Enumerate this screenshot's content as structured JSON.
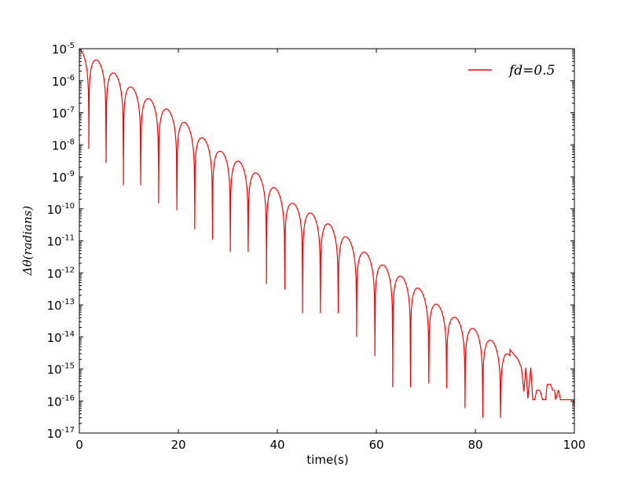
{
  "chart_data": {
    "type": "line",
    "title": "",
    "xlabel": "time(s)",
    "ylabel": "Δθ(radians)",
    "xlim": [
      0,
      100
    ],
    "ylim": [
      1e-17,
      1e-05
    ],
    "yscale": "log",
    "grid": false,
    "legend_position": "top-right",
    "x_ticks": [
      0,
      20,
      40,
      60,
      80,
      100
    ],
    "y_tick_exponents": [
      -5,
      -6,
      -7,
      -8,
      -9,
      -10,
      -11,
      -12,
      -13,
      -14,
      -15,
      -16,
      -17
    ],
    "y_tick_base": "10",
    "series": [
      {
        "name": "fd=0.5",
        "color": "#ff0000",
        "envelope_peaks": [
          {
            "t": 0.0,
            "y": 1e-05
          },
          {
            "t": 3.5,
            "y": 4.5e-06
          },
          {
            "t": 6.8,
            "y": 1.85e-06
          },
          {
            "t": 10.4,
            "y": 6.5e-07
          },
          {
            "t": 14.0,
            "y": 2.8e-07
          },
          {
            "t": 17.6,
            "y": 1.35e-07
          },
          {
            "t": 21.2,
            "y": 5.2e-08
          },
          {
            "t": 24.8,
            "y": 1.7e-08
          },
          {
            "t": 28.4,
            "y": 6.5e-09
          },
          {
            "t": 32.0,
            "y": 3.2e-09
          },
          {
            "t": 35.6,
            "y": 1.4e-09
          },
          {
            "t": 39.2,
            "y": 5e-10
          },
          {
            "t": 42.8,
            "y": 1.6e-10
          },
          {
            "t": 46.4,
            "y": 8e-11
          },
          {
            "t": 50.0,
            "y": 3.7e-11
          },
          {
            "t": 53.6,
            "y": 1.5e-11
          },
          {
            "t": 57.2,
            "y": 5e-12
          },
          {
            "t": 60.8,
            "y": 2e-12
          },
          {
            "t": 64.4,
            "y": 9e-13
          },
          {
            "t": 68.0,
            "y": 4e-13
          },
          {
            "t": 71.6,
            "y": 1.25e-13
          },
          {
            "t": 75.2,
            "y": 4.8e-14
          },
          {
            "t": 78.8,
            "y": 2.2e-14
          },
          {
            "t": 82.4,
            "y": 9.5e-15
          },
          {
            "t": 86.0,
            "y": 4e-15
          },
          {
            "t": 89.2,
            "y": 1e-15
          }
        ],
        "zero_crossings": [
          {
            "t": 1.9,
            "y": 5.5e-08
          },
          {
            "t": 5.4,
            "y": 7.5e-09
          },
          {
            "t": 8.9,
            "y": 2.7e-09
          },
          {
            "t": 12.4,
            "y": 5.5e-10
          },
          {
            "t": 16.0,
            "y": 1e-09
          },
          {
            "t": 19.7,
            "y": 1.5e-10
          },
          {
            "t": 23.3,
            "y": 9e-11
          },
          {
            "t": 26.9,
            "y": 2.3e-11
          },
          {
            "t": 30.5,
            "y": 1.1e-11
          },
          {
            "t": 34.1,
            "y": 4.5e-12
          },
          {
            "t": 37.8,
            "y": 4.5e-12
          },
          {
            "t": 41.5,
            "y": 4.5e-13
          },
          {
            "t": 45.1,
            "y": 3e-13
          },
          {
            "t": 48.7,
            "y": 5.5e-14
          },
          {
            "t": 52.3,
            "y": 9e-14
          },
          {
            "t": 56.0,
            "y": 5.5e-14
          },
          {
            "t": 59.7,
            "y": 1e-14
          },
          {
            "t": 63.3,
            "y": 2.5e-15
          },
          {
            "t": 66.9,
            "y": 2.7e-16
          },
          {
            "t": 70.6,
            "y": 3.5e-16
          },
          {
            "t": 74.2,
            "y": 3.5e-16
          },
          {
            "t": 77.9,
            "y": 2.5e-16
          },
          {
            "t": 81.5,
            "y": 6e-17
          },
          {
            "t": 85.1,
            "y": 3e-17
          }
        ],
        "tail": [
          {
            "t": 87.0,
            "y": 4e-15
          },
          {
            "t": 88.6,
            "y": 2e-15
          },
          {
            "t": 89.3,
            "y": 1.1e-15
          },
          {
            "t": 89.8,
            "y": 2e-16
          },
          {
            "t": 90.2,
            "y": 1.1e-15
          },
          {
            "t": 90.6,
            "y": 1.2e-16
          },
          {
            "t": 91.2,
            "y": 1.1e-15
          },
          {
            "t": 91.6,
            "y": 1.1e-16
          },
          {
            "t": 92.0,
            "y": 1.1e-16
          },
          {
            "t": 92.4,
            "y": 2.2e-16
          },
          {
            "t": 93.0,
            "y": 2.2e-16
          },
          {
            "t": 93.6,
            "y": 1.1e-16
          },
          {
            "t": 94.2,
            "y": 1.1e-16
          },
          {
            "t": 94.5,
            "y": 3.3e-16
          },
          {
            "t": 95.2,
            "y": 3.3e-16
          },
          {
            "t": 95.6,
            "y": 2.2e-16
          },
          {
            "t": 96.0,
            "y": 2.2e-16
          },
          {
            "t": 96.2,
            "y": 1.1e-16
          },
          {
            "t": 96.8,
            "y": 2.2e-16
          },
          {
            "t": 97.2,
            "y": 1.1e-16
          },
          {
            "t": 99.8,
            "y": 1.1e-16
          },
          {
            "t": 100.0,
            "y": 7e-17
          }
        ]
      }
    ]
  }
}
